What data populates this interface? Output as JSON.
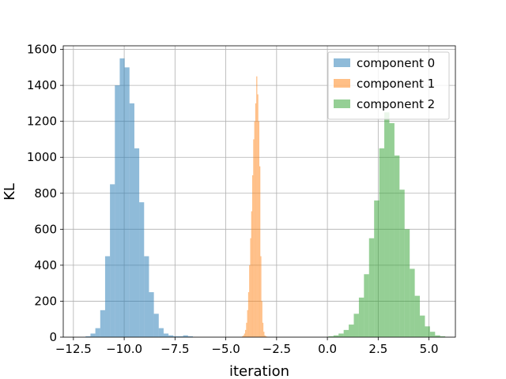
{
  "chart_data": {
    "type": "bar",
    "subtype": "histogram",
    "xlabel": "iteration",
    "ylabel": "KL",
    "xlim": [
      -13.0,
      6.3
    ],
    "ylim": [
      0,
      1620
    ],
    "grid": true,
    "legend_position": "top-right",
    "xticks": [
      {
        "value": -12.5,
        "label": "−12.5"
      },
      {
        "value": -10.0,
        "label": "−10.0"
      },
      {
        "value": -7.5,
        "label": "−7.5"
      },
      {
        "value": -5.0,
        "label": "−5.0"
      },
      {
        "value": -2.5,
        "label": "−2.5"
      },
      {
        "value": 0.0,
        "label": "0.0"
      },
      {
        "value": 2.5,
        "label": "2.5"
      },
      {
        "value": 5.0,
        "label": "5.0"
      }
    ],
    "yticks": [
      {
        "value": 0,
        "label": "0"
      },
      {
        "value": 200,
        "label": "200"
      },
      {
        "value": 400,
        "label": "400"
      },
      {
        "value": 600,
        "label": "600"
      },
      {
        "value": 800,
        "label": "800"
      },
      {
        "value": 1000,
        "label": "1000"
      },
      {
        "value": 1200,
        "label": "1200"
      },
      {
        "value": 1400,
        "label": "1400"
      },
      {
        "value": 1600,
        "label": "1600"
      }
    ],
    "series": [
      {
        "name": "component 0",
        "color": "#1f77b4",
        "opacity": 0.5,
        "bin_width": 0.24,
        "bin_starts": [
          -11.9,
          -11.66,
          -11.42,
          -11.18,
          -10.94,
          -10.7,
          -10.46,
          -10.22,
          -9.98,
          -9.74,
          -9.5,
          -9.26,
          -9.02,
          -8.78,
          -8.54,
          -8.3,
          -8.06,
          -7.82,
          -7.58,
          -7.34,
          -7.1,
          -6.86
        ],
        "values": [
          5,
          20,
          50,
          150,
          450,
          850,
          1400,
          1550,
          1500,
          1300,
          1050,
          750,
          450,
          250,
          130,
          50,
          20,
          10,
          5,
          5,
          10,
          5
        ]
      },
      {
        "name": "component 1",
        "color": "#ff7f0e",
        "opacity": 0.5,
        "bin_width": 0.05,
        "bin_starts": [
          -4.2,
          -4.15,
          -4.1,
          -4.05,
          -4.0,
          -3.95,
          -3.9,
          -3.85,
          -3.8,
          -3.75,
          -3.7,
          -3.65,
          -3.6,
          -3.55,
          -3.5,
          -3.45,
          -3.4,
          -3.35,
          -3.3,
          -3.25,
          -3.2,
          -3.15,
          -3.1,
          -3.05,
          -3.0
        ],
        "values": [
          5,
          10,
          20,
          40,
          80,
          150,
          250,
          400,
          550,
          700,
          900,
          1100,
          1200,
          1300,
          1450,
          1350,
          1200,
          950,
          450,
          200,
          80,
          30,
          10,
          5,
          3
        ]
      },
      {
        "name": "component 2",
        "color": "#2ca02c",
        "opacity": 0.5,
        "bin_width": 0.25,
        "bin_starts": [
          0.05,
          0.3,
          0.55,
          0.8,
          1.05,
          1.3,
          1.55,
          1.8,
          2.05,
          2.3,
          2.55,
          2.8,
          3.05,
          3.3,
          3.55,
          3.8,
          4.05,
          4.3,
          4.55,
          4.8,
          5.05,
          5.3,
          5.55
        ],
        "values": [
          5,
          10,
          20,
          40,
          70,
          130,
          220,
          350,
          550,
          760,
          1050,
          1250,
          1190,
          1010,
          820,
          600,
          380,
          230,
          120,
          60,
          30,
          10,
          5
        ]
      }
    ]
  }
}
